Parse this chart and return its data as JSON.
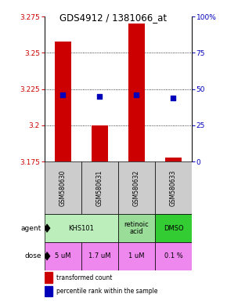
{
  "title": "GDS4912 / 1381066_at",
  "samples": [
    "GSM580630",
    "GSM580631",
    "GSM580632",
    "GSM580633"
  ],
  "bar_bottoms": [
    3.175,
    3.175,
    3.175,
    3.175
  ],
  "bar_tops": [
    3.258,
    3.2,
    3.27,
    3.178
  ],
  "percentile_values": [
    3.221,
    3.22,
    3.221,
    3.219
  ],
  "ylim": [
    3.175,
    3.275
  ],
  "yticks_left": [
    3.175,
    3.2,
    3.225,
    3.25,
    3.275
  ],
  "yticks_right": [
    0,
    25,
    50,
    75,
    100
  ],
  "ytick_labels_left": [
    "3.175",
    "3.2",
    "3.225",
    "3.25",
    "3.275"
  ],
  "ytick_labels_right": [
    "0",
    "25",
    "50",
    "75",
    "100%"
  ],
  "bar_color": "#cc0000",
  "dot_color": "#0000bb",
  "doses": [
    "5 uM",
    "1.7 uM",
    "1 uM",
    "0.1 %"
  ],
  "dose_color": "#ee88ee",
  "sample_bg_color": "#cccccc",
  "agent_configs": [
    {
      "start": 0,
      "end": 2,
      "label": "KHS101",
      "color": "#bbeebb"
    },
    {
      "start": 2,
      "end": 3,
      "label": "retinoic\nacid",
      "color": "#99dd99"
    },
    {
      "start": 3,
      "end": 4,
      "label": "DMSO",
      "color": "#33cc33"
    }
  ],
  "legend_red_label": "transformed count",
  "legend_blue_label": "percentile rank within the sample",
  "left_label_color": "#cc0000",
  "right_label_color": "#0000bb"
}
